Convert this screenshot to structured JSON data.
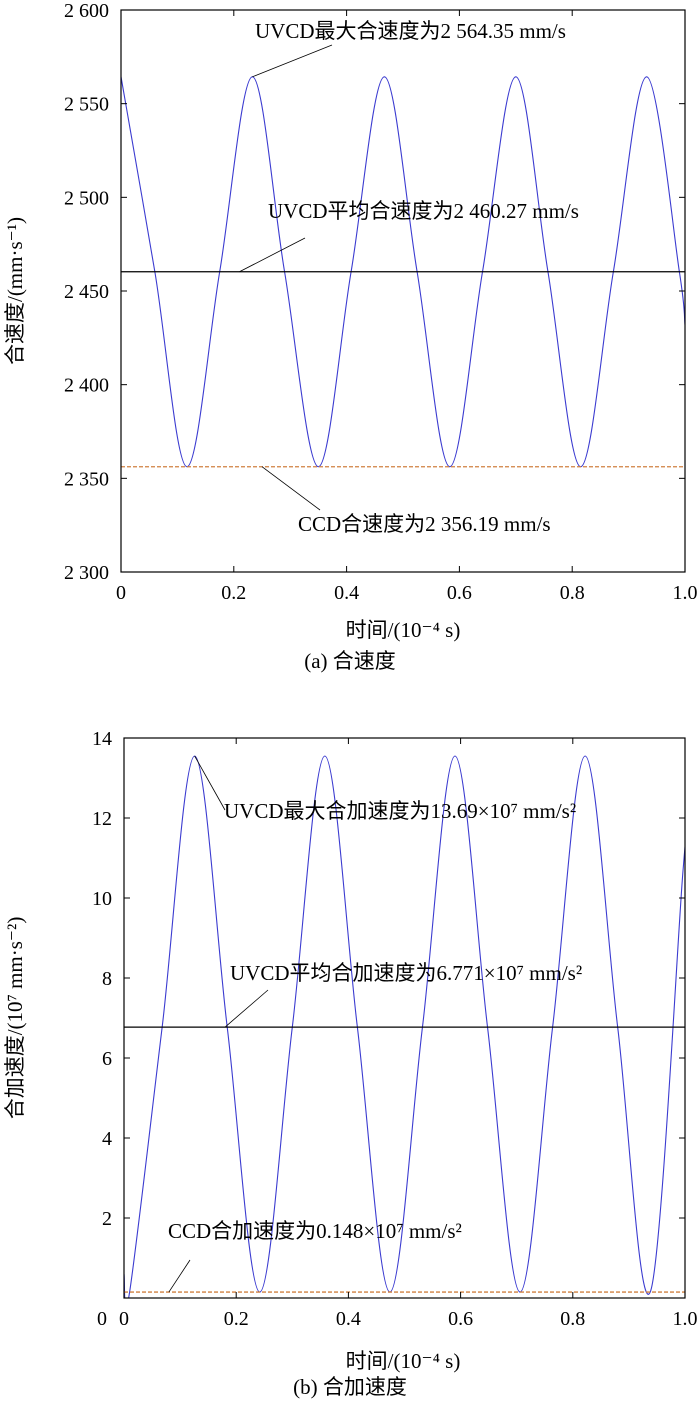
{
  "chart_data": [
    {
      "panel": "a",
      "type": "line",
      "caption": "(a) 合速度",
      "xlabel": "时间/(10⁻⁴ s)",
      "ylabel": "合速度/(mm·s⁻¹)",
      "xlim": [
        0,
        1.0
      ],
      "ylim": [
        2300,
        2600
      ],
      "xticks": [
        {
          "value": 0,
          "label": "0"
        },
        {
          "value": 0.2,
          "label": "0.2"
        },
        {
          "value": 0.4,
          "label": "0.4"
        },
        {
          "value": 0.6,
          "label": "0.6"
        },
        {
          "value": 0.8,
          "label": "0.8"
        },
        {
          "value": 1.0,
          "label": "1.0"
        }
      ],
      "yticks": [
        {
          "value": 2300,
          "label": "2 300"
        },
        {
          "value": 2350,
          "label": "2 350"
        },
        {
          "value": 2400,
          "label": "2 400"
        },
        {
          "value": 2450,
          "label": "2 450"
        },
        {
          "value": 2500,
          "label": "2 500"
        },
        {
          "value": 2550,
          "label": "2 550"
        },
        {
          "value": 2600,
          "label": "2 600"
        }
      ],
      "grid": false,
      "series": [
        {
          "color": "#3b3bd0",
          "x": [
            0,
            0.06,
            0.117,
            0.175,
            0.233,
            0.29,
            0.35,
            0.408,
            0.467,
            0.525,
            0.583,
            0.641,
            0.7,
            0.757,
            0.815,
            0.873,
            0.932,
            0.99,
            1.0
          ],
          "y": [
            2564.35,
            2460.3,
            2356.19,
            2460.3,
            2564.35,
            2460.3,
            2356.19,
            2460.3,
            2564.35,
            2460.3,
            2356.19,
            2460.3,
            2564.35,
            2460.3,
            2356.19,
            2460.3,
            2564.35,
            2460.3,
            2432
          ]
        },
        {
          "color": "#000000",
          "style": "solid",
          "x": [
            0,
            1.0
          ],
          "y": [
            2460.27,
            2460.27
          ]
        },
        {
          "color": "#d08040",
          "style": "dashed",
          "x": [
            0,
            1.0
          ],
          "y": [
            2356.19,
            2356.19
          ]
        }
      ],
      "annotations": [
        {
          "text": "UVCD最大合速度为2 564.35 mm/s",
          "x": 0.233,
          "y": 2564.35
        },
        {
          "text": "UVCD平均合速度为2 460.27 mm/s",
          "x": 0.21,
          "y": 2460.27
        },
        {
          "text": "CCD合速度为2 356.19 mm/s",
          "x": 0.25,
          "y": 2356.19
        }
      ]
    },
    {
      "panel": "b",
      "type": "line",
      "caption": "(b) 合加速度",
      "xlabel": "时间/(10⁻⁴ s)",
      "ylabel": "合加速度/(10⁷ mm·s⁻²)",
      "xlim": [
        0,
        1.0
      ],
      "ylim": [
        0,
        14
      ],
      "xticks": [
        {
          "value": 0,
          "label": "0"
        },
        {
          "value": 0.2,
          "label": "0.2"
        },
        {
          "value": 0.4,
          "label": "0.4"
        },
        {
          "value": 0.6,
          "label": "0.6"
        },
        {
          "value": 0.8,
          "label": "0.8"
        },
        {
          "value": 1.0,
          "label": "1.0"
        }
      ],
      "yticks": [
        {
          "value": 2,
          "label": "2"
        },
        {
          "value": 4,
          "label": "4"
        },
        {
          "value": 6,
          "label": "6"
        },
        {
          "value": 8,
          "label": "8"
        },
        {
          "value": 10,
          "label": "10"
        },
        {
          "value": 12,
          "label": "12"
        },
        {
          "value": 14,
          "label": "14"
        }
      ],
      "grid": false,
      "series": [
        {
          "color": "#3b3bd0",
          "x": [
            0,
            0.01,
            0.068,
            0.126,
            0.184,
            0.242,
            0.3,
            0.358,
            0.416,
            0.474,
            0.532,
            0.59,
            0.648,
            0.706,
            0.764,
            0.822,
            0.88,
            0.938,
            0.996,
            1.0
          ],
          "y": [
            0.6,
            0.148,
            6.77,
            13.55,
            6.77,
            0.148,
            6.77,
            13.55,
            6.77,
            0.148,
            6.77,
            13.55,
            6.77,
            0.148,
            6.77,
            13.55,
            6.77,
            0.148,
            10.6,
            11.0
          ]
        },
        {
          "color": "#000000",
          "style": "solid",
          "x": [
            0,
            1.0
          ],
          "y": [
            6.771,
            6.771
          ]
        },
        {
          "color": "#d08040",
          "style": "dashed",
          "x": [
            0,
            1.0
          ],
          "y": [
            0.148,
            0.148
          ]
        }
      ],
      "annotations": [
        {
          "text": "UVCD最大合加速度为13.69×10⁷ mm/s²",
          "x": 0.126,
          "y": 13.55
        },
        {
          "text": "UVCD平均合加速度为6.771×10⁷ mm/s²",
          "x": 0.18,
          "y": 6.771
        },
        {
          "text": "CCD合加速度为0.148×10⁷ mm/s²",
          "x": 0.08,
          "y": 0.148
        }
      ]
    }
  ]
}
